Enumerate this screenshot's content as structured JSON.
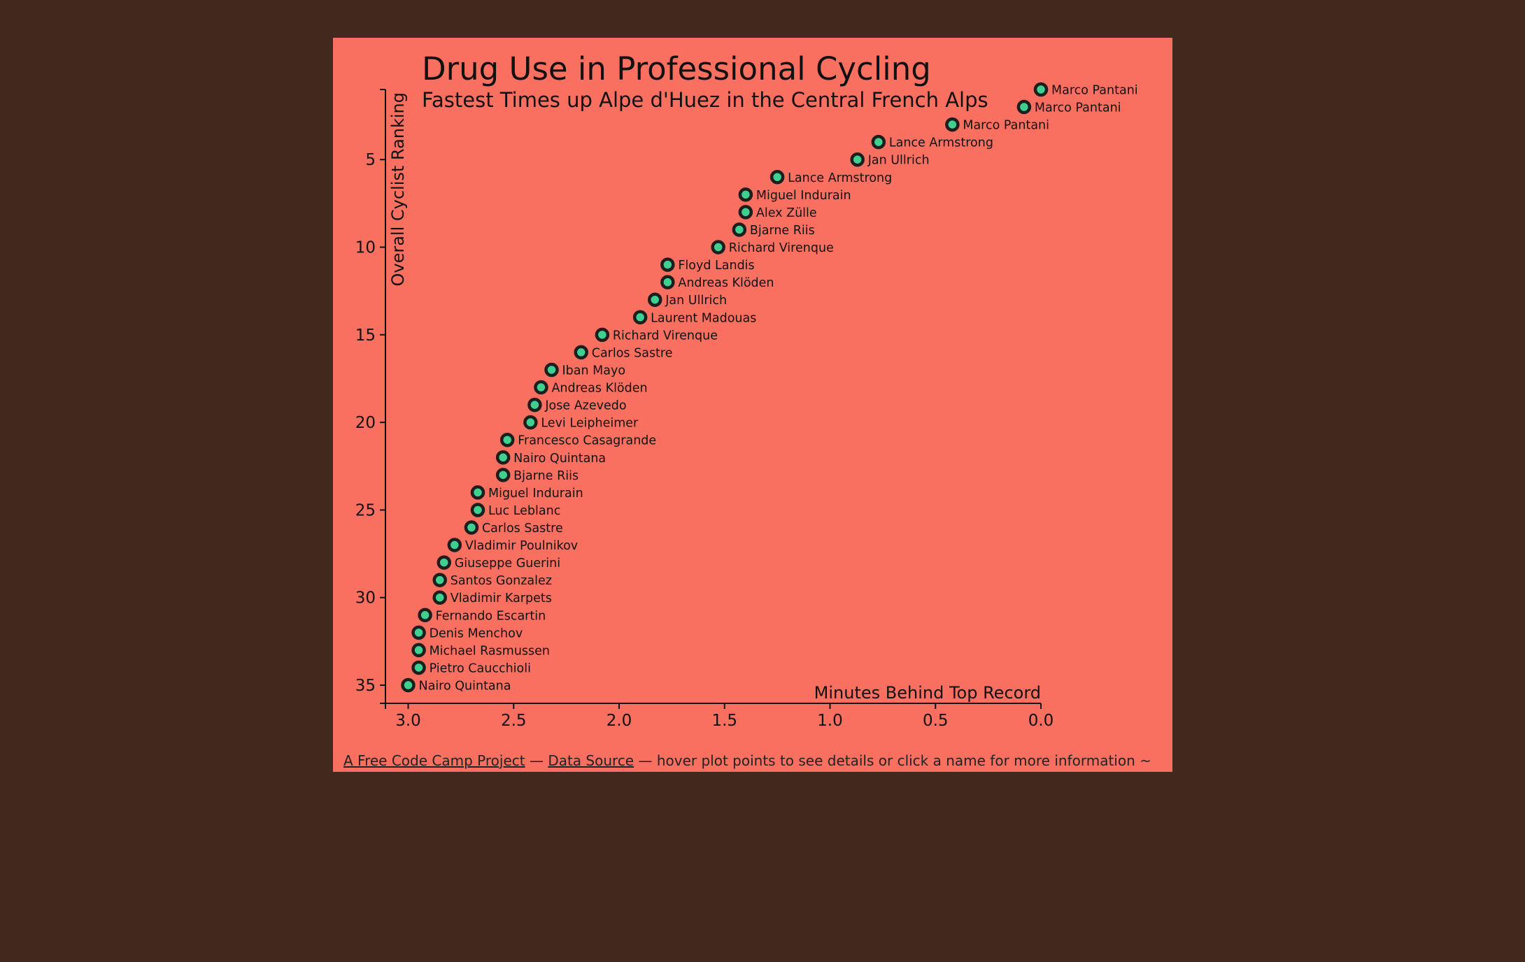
{
  "chart_data": {
    "type": "scatter",
    "title": "Drug Use in Professional Cycling",
    "subtitle": "Fastest Times up Alpe d'Huez in the Central French Alps",
    "xlabel": "Minutes Behind Top Record",
    "ylabel": "Overall Cyclist Ranking",
    "x_reversed": true,
    "y_reversed": true,
    "xlim": [
      0,
      3.1
    ],
    "ylim": [
      1,
      36
    ],
    "xticks": [
      "3.0",
      "2.5",
      "2.0",
      "1.5",
      "1.0",
      "0.5",
      "0.0"
    ],
    "xtick_values": [
      3.0,
      2.5,
      2.0,
      1.5,
      1.0,
      0.5,
      0.0
    ],
    "yticks": [
      "5",
      "10",
      "15",
      "20",
      "25",
      "30",
      "35"
    ],
    "ytick_values": [
      5,
      10,
      15,
      20,
      25,
      30,
      35
    ],
    "point_color": "#3ecf91",
    "points": [
      {
        "rank": 1,
        "minutes": 0.0,
        "name": "Marco Pantani"
      },
      {
        "rank": 2,
        "minutes": 0.08,
        "name": "Marco Pantani"
      },
      {
        "rank": 3,
        "minutes": 0.42,
        "name": "Marco Pantani"
      },
      {
        "rank": 4,
        "minutes": 0.77,
        "name": "Lance Armstrong"
      },
      {
        "rank": 5,
        "minutes": 0.87,
        "name": "Jan Ullrich"
      },
      {
        "rank": 6,
        "minutes": 1.25,
        "name": "Lance Armstrong"
      },
      {
        "rank": 7,
        "minutes": 1.4,
        "name": "Miguel Indurain"
      },
      {
        "rank": 8,
        "minutes": 1.4,
        "name": "Alex Zülle"
      },
      {
        "rank": 9,
        "minutes": 1.43,
        "name": "Bjarne Riis"
      },
      {
        "rank": 10,
        "minutes": 1.53,
        "name": "Richard Virenque"
      },
      {
        "rank": 11,
        "minutes": 1.77,
        "name": "Floyd Landis"
      },
      {
        "rank": 12,
        "minutes": 1.77,
        "name": "Andreas Klöden"
      },
      {
        "rank": 13,
        "minutes": 1.83,
        "name": "Jan Ullrich"
      },
      {
        "rank": 14,
        "minutes": 1.9,
        "name": "Laurent Madouas"
      },
      {
        "rank": 15,
        "minutes": 2.08,
        "name": "Richard Virenque"
      },
      {
        "rank": 16,
        "minutes": 2.18,
        "name": "Carlos Sastre"
      },
      {
        "rank": 17,
        "minutes": 2.32,
        "name": "Iban Mayo"
      },
      {
        "rank": 18,
        "minutes": 2.37,
        "name": "Andreas Klöden"
      },
      {
        "rank": 19,
        "minutes": 2.4,
        "name": "Jose Azevedo"
      },
      {
        "rank": 20,
        "minutes": 2.42,
        "name": "Levi Leipheimer"
      },
      {
        "rank": 21,
        "minutes": 2.53,
        "name": "Francesco Casagrande"
      },
      {
        "rank": 22,
        "minutes": 2.55,
        "name": "Nairo Quintana"
      },
      {
        "rank": 23,
        "minutes": 2.55,
        "name": "Bjarne Riis"
      },
      {
        "rank": 24,
        "minutes": 2.67,
        "name": "Miguel Indurain"
      },
      {
        "rank": 25,
        "minutes": 2.67,
        "name": "Luc Leblanc"
      },
      {
        "rank": 26,
        "minutes": 2.7,
        "name": "Carlos Sastre"
      },
      {
        "rank": 27,
        "minutes": 2.78,
        "name": "Vladimir Poulnikov"
      },
      {
        "rank": 28,
        "minutes": 2.83,
        "name": "Giuseppe Guerini"
      },
      {
        "rank": 29,
        "minutes": 2.85,
        "name": "Santos Gonzalez"
      },
      {
        "rank": 30,
        "minutes": 2.85,
        "name": "Vladimir Karpets"
      },
      {
        "rank": 31,
        "minutes": 2.92,
        "name": "Fernando Escartin"
      },
      {
        "rank": 32,
        "minutes": 2.95,
        "name": "Denis Menchov"
      },
      {
        "rank": 33,
        "minutes": 2.95,
        "name": "Michael Rasmussen"
      },
      {
        "rank": 34,
        "minutes": 2.95,
        "name": "Pietro Caucchioli"
      },
      {
        "rank": 35,
        "minutes": 3.0,
        "name": "Nairo Quintana"
      }
    ]
  },
  "footer": {
    "project_link": "A Free Code Camp Project",
    "separator_1": "—",
    "source_link": "Data Source",
    "hint": "— hover plot points to see details or click a name for more information ~"
  },
  "colors": {
    "page_background": "#42291d",
    "card_background": "#fa7060",
    "point_fill": "#3ecf91",
    "point_stroke": "#1e1e1e"
  }
}
